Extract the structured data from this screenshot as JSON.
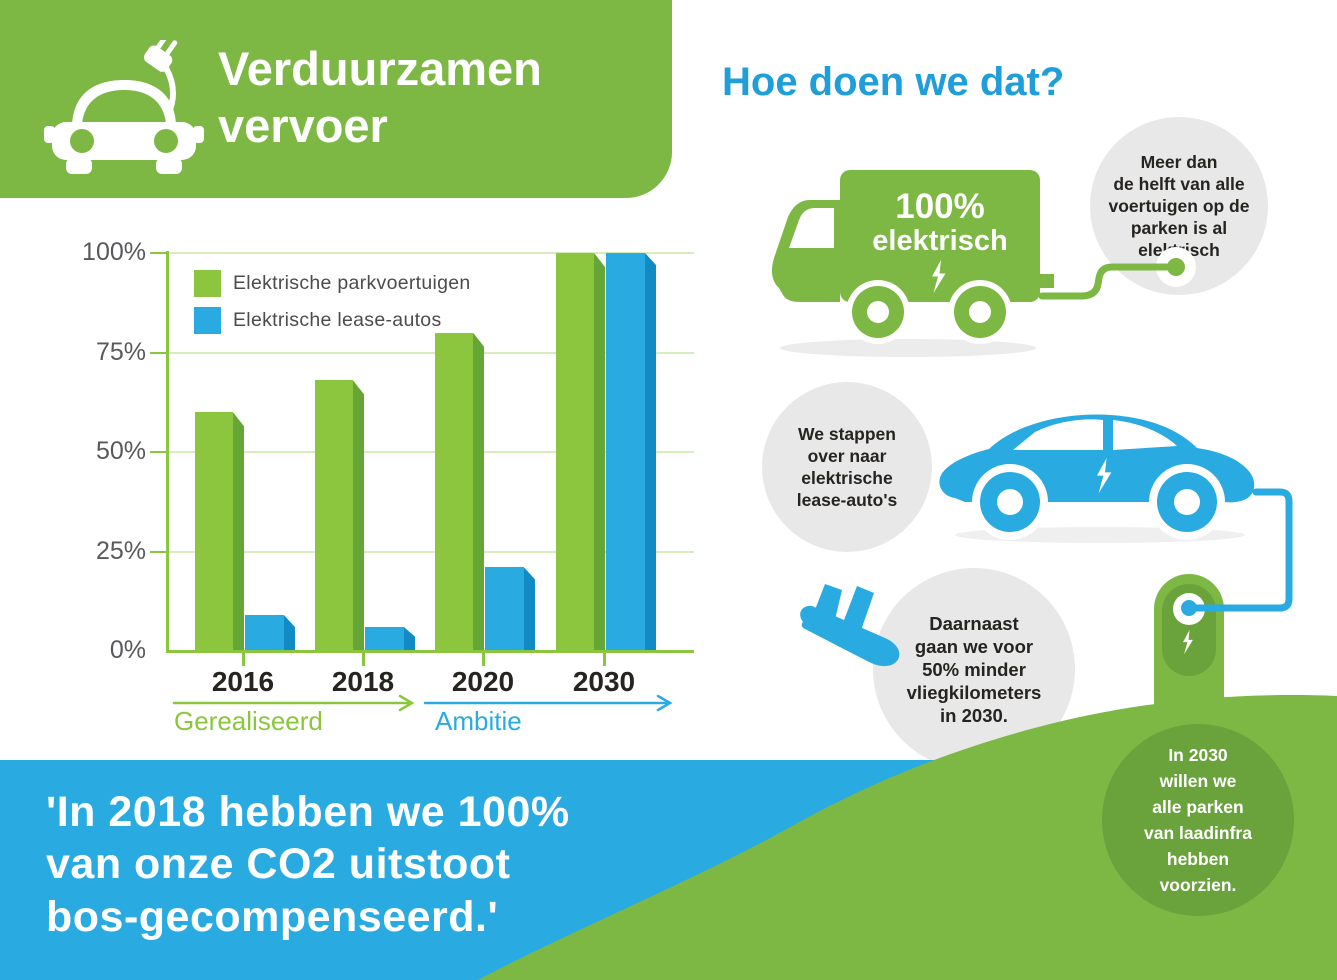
{
  "header": {
    "title": "Verduurzamen\nvervoer",
    "icon": "electric-car-icon"
  },
  "chart_data": {
    "type": "bar",
    "categories": [
      "2016",
      "2018",
      "2020",
      "2030"
    ],
    "series": [
      {
        "name": "Elektrische parkvoertuigen",
        "color": "#8cc63e",
        "side_color": "#66a637",
        "values": [
          60,
          68,
          80,
          100
        ]
      },
      {
        "name": "Elektrische lease-autos",
        "color": "#29abe2",
        "side_color": "#128ac4",
        "values": [
          9,
          6,
          21,
          100
        ]
      }
    ],
    "y_ticks": [
      "100%",
      "75%",
      "50%",
      "25%",
      "0%"
    ],
    "ylim": [
      0,
      100
    ],
    "grid": true,
    "legend_position": "top-left",
    "x_axis_phases": [
      {
        "label": "Gerealiseerd",
        "covers": [
          "2016",
          "2018"
        ]
      },
      {
        "label": "Ambitie",
        "covers": [
          "2020",
          "2030"
        ]
      }
    ]
  },
  "timeline": {
    "realized_label": "Gerealiseerd",
    "ambition_label": "Ambitie"
  },
  "right": {
    "heading": "Hoe doen we dat?",
    "truck_label_line1": "100%",
    "truck_label_line2": "elektrisch",
    "bubble_fleet": "Meer dan\nde helft van alle\nvoertuigen op de\nparken is al\nelektrisch",
    "bubble_lease": "We stappen\nover naar\nelektrische\nlease-auto's",
    "bubble_flights": "Daarnaast\ngaan we voor\n50% minder\nvliegkilometers\nin 2030.",
    "bubble_charging": "In 2030\nwillen we\nalle parken\nvan laadinfra\nhebben\nvoorzien."
  },
  "quote": {
    "text": "'In 2018 hebben we 100%\nvan onze CO2 uitstoot\nbos-gecompenseerd.'"
  },
  "colors": {
    "brand_green": "#7cb843",
    "bar_green": "#8cc63e",
    "bar_green_side": "#66a637",
    "brand_blue": "#29abe2",
    "bar_blue_side": "#128ac4",
    "heading_blue": "#1f9ed9",
    "bubble_gray": "#e8e8e8",
    "dark_green": "#6aa23c",
    "grid_green": "#d6edbd",
    "text_dark": "#262420",
    "axis_text": "#58595b"
  }
}
